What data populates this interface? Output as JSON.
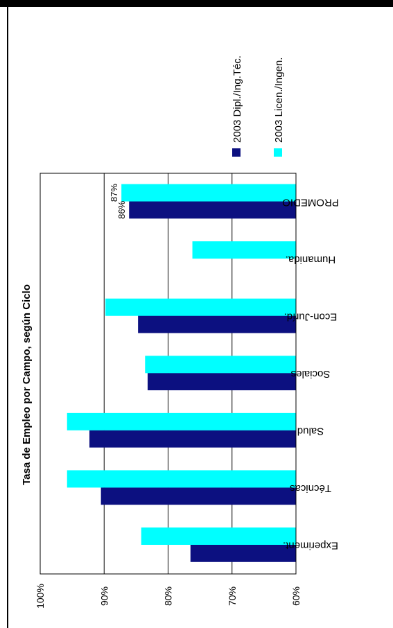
{
  "chart_data": {
    "type": "bar",
    "orientation": "horizontal",
    "title": "Tasa de Empleo por Campo, según Ciclo",
    "categories": [
      "Experiment.",
      "Técnicas",
      "Salud",
      "Sociales",
      "Econ-Juríd.",
      "Humanida.",
      "PROMEDIO"
    ],
    "series": [
      {
        "name": "2003 Dipl./Ing.Téc.",
        "color": "#0c1080",
        "values": [
          76.5,
          90.5,
          92.3,
          83.2,
          84.7,
          null,
          86.1
        ]
      },
      {
        "name": "2003 Licen./Ingen.",
        "color": "#00ffff",
        "values": [
          84.2,
          95.8,
          95.8,
          83.6,
          89.8,
          76.2,
          87.3
        ]
      }
    ],
    "data_labels": [
      {
        "category": "PROMEDIO",
        "series": 0,
        "text": "86%"
      },
      {
        "category": "PROMEDIO",
        "series": 1,
        "text": "87%"
      }
    ],
    "axis": {
      "ticks": [
        60,
        70,
        80,
        90,
        100
      ],
      "tick_labels": [
        "60%",
        "70%",
        "80%",
        "90%",
        "100%"
      ],
      "range": [
        60,
        100
      ]
    },
    "grid": true,
    "legend_position": "top-right"
  }
}
